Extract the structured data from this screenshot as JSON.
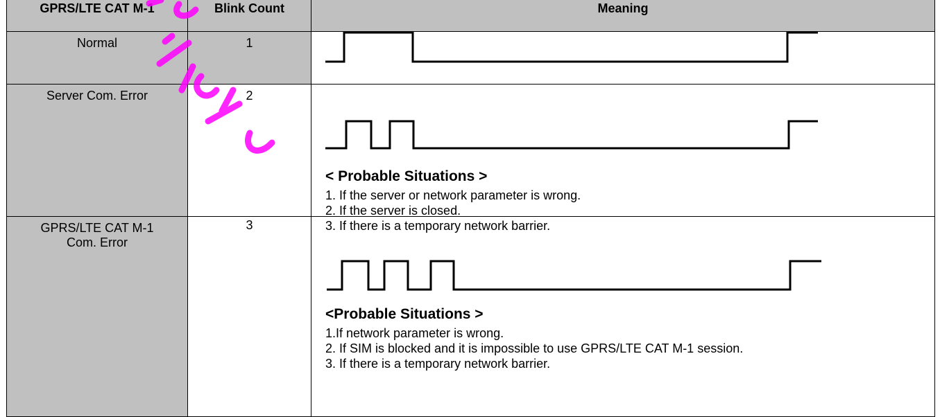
{
  "table": {
    "header": [
      "GPRS/LTE CAT M-1",
      "Blink Count",
      "Meaning"
    ],
    "rows": [
      {
        "status": "Normal",
        "count": 1
      },
      {
        "status": "Server Com. Error",
        "count": 2,
        "heading": "< Probable Situations >",
        "items": [
          "1. If the server or network parameter is wrong.",
          "2. If the server is closed.",
          "3. If there is a temporary network barrier."
        ]
      },
      {
        "status": "GPRS/LTE CAT M-1 Com. Error",
        "count": 3,
        "heading": "<Probable Situations >",
        "items": [
          "1.If network parameter is wrong.",
          "2. If SIM is blocked and it is impossible to use GPRS/LTE CAT M-1 session.",
          "3. If there is a temporary network barrier."
        ]
      }
    ]
  }
}
